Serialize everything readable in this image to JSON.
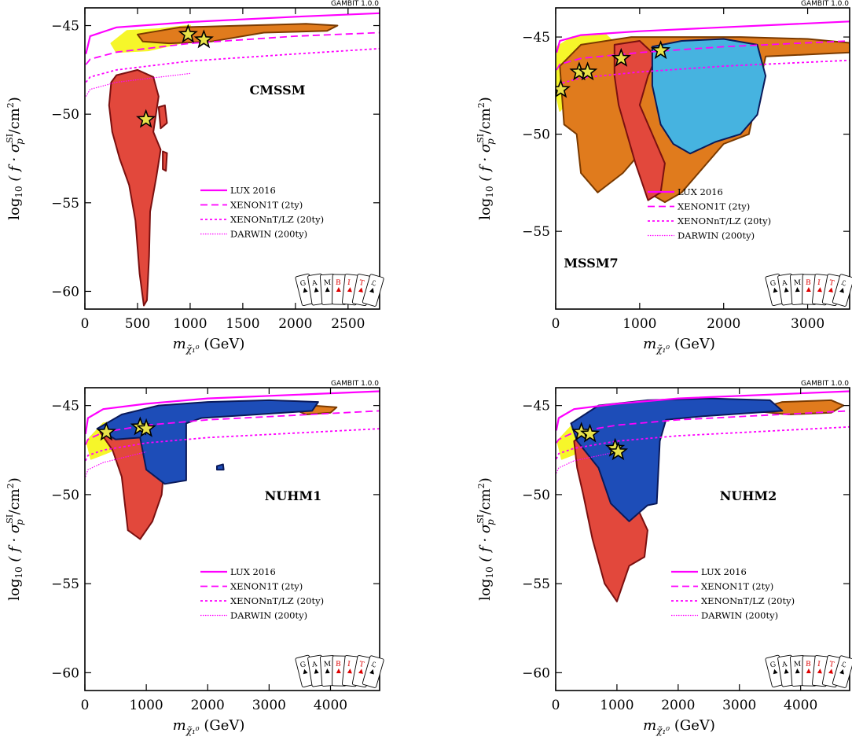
{
  "gambit_label": "GAMBIT 1.0.0",
  "panel_colors": {
    "red": "#e2483c",
    "red_edge": "#7a1010",
    "orange": "#e07b1d",
    "orange_edge": "#7a3a00",
    "yellow": "#f6f62a",
    "blue_dark": "#1d4db8",
    "blue_light": "#46b3e0",
    "blue_edge": "#0a1a5a",
    "limit": "#ff00ff",
    "star_line": "#e8e24a"
  },
  "chart_data": [
    {
      "type": "contour",
      "model_label": "CMSSM",
      "xlabel_main": "m",
      "xlabel_unit": "(GeV)",
      "ylabel_text": "log",
      "ylabel_sub": "10",
      "ylabel_body": "( f · σ",
      "ylabel_sup": "SI",
      "ylabel_p": "p",
      "ylabel_tail": "/cm",
      "ylabel_sq": "2",
      "ylabel_close": ")",
      "xlim": [
        0,
        2800
      ],
      "ylim": [
        -61,
        -44
      ],
      "xticks": [
        0,
        500,
        1000,
        1500,
        2000,
        2500
      ],
      "yticks": [
        -45,
        -50,
        -55,
        -60
      ],
      "legend": [
        "LUX 2016",
        "XENON1T (2ty)",
        "XENONnT/LZ (20ty)",
        "DARWIN (200ty)"
      ],
      "stars": [
        [
          980,
          -45.5
        ],
        [
          1130,
          -45.8
        ],
        [
          580,
          -50.3
        ]
      ],
      "limits": {
        "lux": [
          [
            10,
            -46.6
          ],
          [
            50,
            -45.6
          ],
          [
            300,
            -45.1
          ],
          [
            1000,
            -44.8
          ],
          [
            2000,
            -44.5
          ],
          [
            2800,
            -44.3
          ]
        ],
        "xenon1t": [
          [
            10,
            -47.2
          ],
          [
            50,
            -46.9
          ],
          [
            300,
            -46.5
          ],
          [
            1000,
            -46.0
          ],
          [
            2000,
            -45.6
          ],
          [
            2800,
            -45.4
          ]
        ],
        "xenonnt": [
          [
            10,
            -48.2
          ],
          [
            50,
            -47.9
          ],
          [
            300,
            -47.5
          ],
          [
            1000,
            -47.0
          ],
          [
            2000,
            -46.6
          ],
          [
            2800,
            -46.3
          ]
        ],
        "darwin": [
          [
            10,
            -49.0
          ],
          [
            50,
            -48.6
          ],
          [
            300,
            -48.2
          ],
          [
            1000,
            -47.7
          ]
        ]
      }
    },
    {
      "type": "contour",
      "model_label": "MSSM7",
      "xlim": [
        0,
        3500
      ],
      "ylim": [
        -59,
        -43.5
      ],
      "xticks": [
        0,
        1000,
        2000,
        3000
      ],
      "yticks": [
        -45,
        -50,
        -55
      ],
      "legend": [
        "LUX 2016",
        "XENON1T (2ty)",
        "XENONnT/LZ (20ty)",
        "DARWIN (200ty)"
      ],
      "stars": [
        [
          60,
          -47.7
        ],
        [
          280,
          -46.8
        ],
        [
          380,
          -46.8
        ],
        [
          780,
          -46.1
        ],
        [
          1250,
          -45.7
        ]
      ],
      "limits": {
        "lux": [
          [
            10,
            -45.8
          ],
          [
            50,
            -45.2
          ],
          [
            300,
            -44.9
          ],
          [
            1000,
            -44.7
          ],
          [
            2000,
            -44.5
          ],
          [
            3500,
            -44.2
          ]
        ],
        "xenon1t": [
          [
            10,
            -46.7
          ],
          [
            50,
            -46.4
          ],
          [
            300,
            -46.1
          ],
          [
            1000,
            -45.8
          ],
          [
            2000,
            -45.5
          ],
          [
            3500,
            -45.2
          ]
        ],
        "xenonnt": [
          [
            10,
            -47.7
          ],
          [
            50,
            -47.4
          ],
          [
            300,
            -47.1
          ],
          [
            1000,
            -46.8
          ],
          [
            2000,
            -46.5
          ],
          [
            3500,
            -46.2
          ]
        ],
        "darwin": []
      }
    },
    {
      "type": "contour",
      "model_label": "NUHM1",
      "xlim": [
        0,
        4800
      ],
      "ylim": [
        -61,
        -44
      ],
      "xticks": [
        0,
        1000,
        2000,
        3000,
        4000
      ],
      "yticks": [
        -45,
        -50,
        -55,
        -60
      ],
      "legend": [
        "LUX 2016",
        "XENON1T (2ty)",
        "XENONnT/LZ (20ty)",
        "DARWIN (200ty)"
      ],
      "stars": [
        [
          350,
          -46.5
        ],
        [
          900,
          -46.2
        ],
        [
          1000,
          -46.3
        ]
      ],
      "limits": {
        "lux": [
          [
            10,
            -46.6
          ],
          [
            50,
            -45.7
          ],
          [
            300,
            -45.2
          ],
          [
            1000,
            -44.9
          ],
          [
            2000,
            -44.6
          ],
          [
            4800,
            -44.2
          ]
        ],
        "xenon1t": [
          [
            10,
            -47.2
          ],
          [
            50,
            -46.9
          ],
          [
            300,
            -46.5
          ],
          [
            1000,
            -46.1
          ],
          [
            2000,
            -45.8
          ],
          [
            4800,
            -45.3
          ]
        ],
        "xenonnt": [
          [
            10,
            -48.1
          ],
          [
            50,
            -47.8
          ],
          [
            300,
            -47.5
          ],
          [
            1000,
            -47.1
          ],
          [
            2000,
            -46.8
          ],
          [
            4800,
            -46.3
          ]
        ],
        "darwin": [
          [
            10,
            -49.0
          ],
          [
            50,
            -48.6
          ],
          [
            300,
            -48.2
          ],
          [
            1000,
            -47.6
          ]
        ]
      }
    },
    {
      "type": "contour",
      "model_label": "NUHM2",
      "xlim": [
        0,
        4800
      ],
      "ylim": [
        -61,
        -44
      ],
      "xticks": [
        0,
        1000,
        2000,
        3000,
        4000
      ],
      "yticks": [
        -45,
        -50,
        -55,
        -60
      ],
      "legend": [
        "LUX 2016",
        "XENON1T (2ty)",
        "XENONnT/LZ (20ty)",
        "DARWIN (200ty)"
      ],
      "stars": [
        [
          420,
          -46.5
        ],
        [
          560,
          -46.6
        ],
        [
          970,
          -47.4
        ],
        [
          1020,
          -47.6
        ]
      ],
      "limits": {
        "lux": [
          [
            10,
            -46.4
          ],
          [
            50,
            -45.7
          ],
          [
            300,
            -45.2
          ],
          [
            1000,
            -44.9
          ],
          [
            2000,
            -44.6
          ],
          [
            4800,
            -44.2
          ]
        ],
        "xenon1t": [
          [
            10,
            -47.1
          ],
          [
            50,
            -46.9
          ],
          [
            300,
            -46.5
          ],
          [
            1000,
            -46.1
          ],
          [
            2000,
            -45.8
          ],
          [
            4800,
            -45.3
          ]
        ],
        "xenonnt": [
          [
            10,
            -48.0
          ],
          [
            50,
            -47.7
          ],
          [
            300,
            -47.4
          ],
          [
            1000,
            -47.0
          ],
          [
            2000,
            -46.7
          ],
          [
            4800,
            -46.2
          ]
        ],
        "darwin": [
          [
            10,
            -48.8
          ],
          [
            50,
            -48.5
          ],
          [
            300,
            -48.1
          ],
          [
            1000,
            -47.6
          ]
        ]
      }
    }
  ]
}
